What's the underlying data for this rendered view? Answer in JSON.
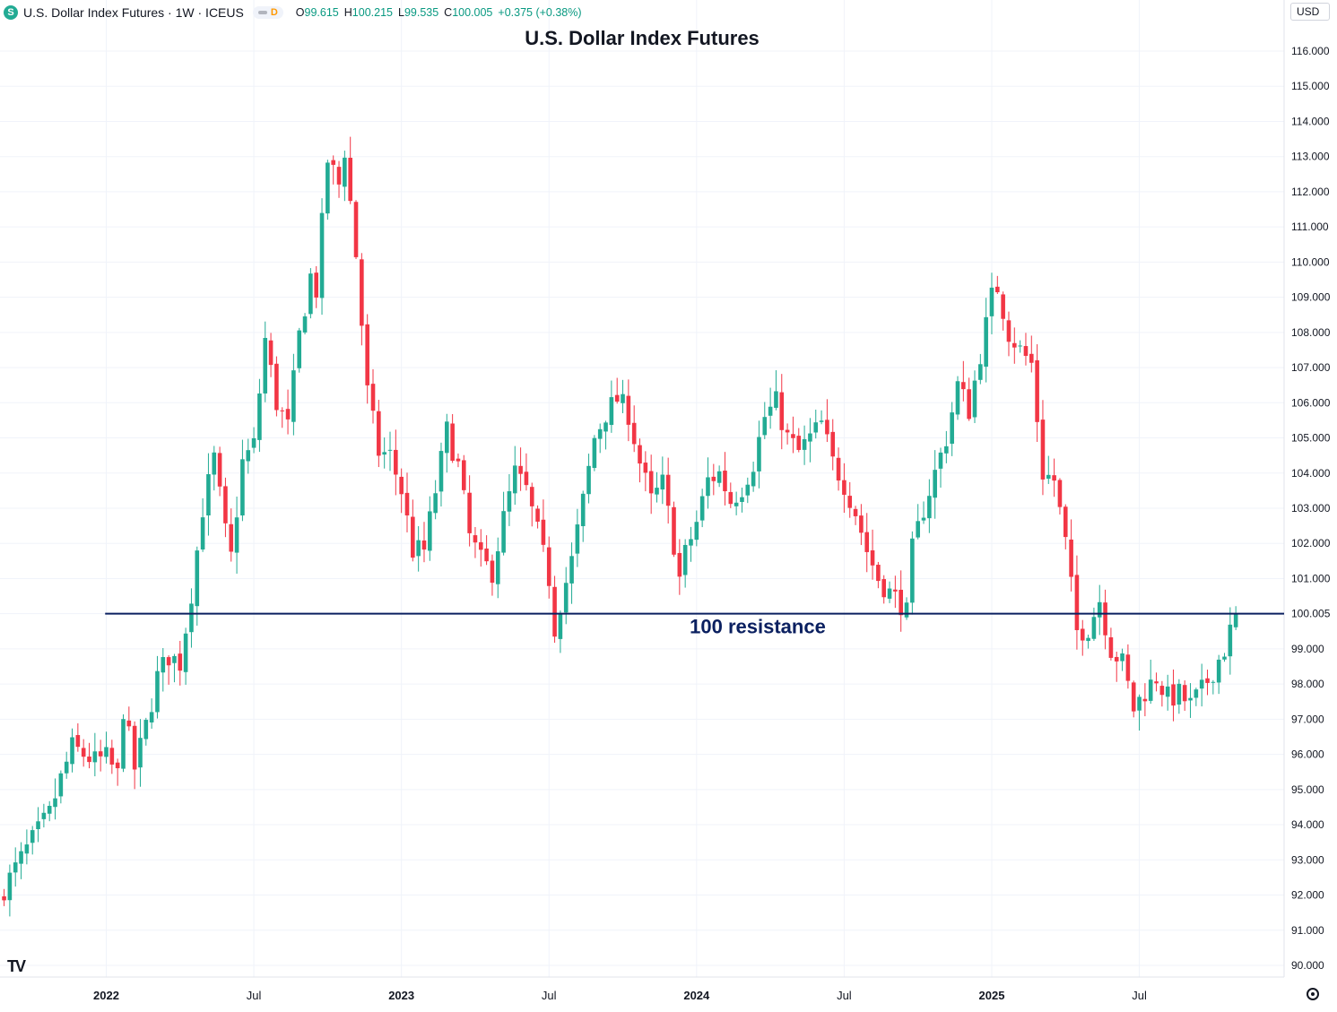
{
  "legend": {
    "symbol_icon": "S",
    "symbol_title": "U.S. Dollar Index Futures · 1W · ICEUS",
    "delay_badge": "D",
    "open_label": "O",
    "open_value": "99.615",
    "high_label": "H",
    "high_value": "100.215",
    "low_label": "L",
    "low_value": "99.535",
    "close_label": "C",
    "close_value": "100.005",
    "change_value": "+0.375 (+0.38%)"
  },
  "currency": "USD",
  "logo_text": "TV",
  "chart_data": {
    "type": "candlestick",
    "title": "U.S. Dollar Index Futures",
    "timeframe": "1W",
    "y_axis": {
      "range": [
        89.7,
        117.1
      ],
      "ticks": [
        "90.000",
        "91.000",
        "92.000",
        "93.000",
        "94.000",
        "95.000",
        "96.000",
        "97.000",
        "98.000",
        "99.000",
        "100.000",
        "101.000",
        "102.000",
        "103.000",
        "104.000",
        "105.000",
        "106.000",
        "107.000",
        "108.000",
        "109.000",
        "110.000",
        "111.000",
        "112.000",
        "113.000",
        "114.000",
        "115.000",
        "116.000"
      ],
      "current_price_label": "100.005"
    },
    "x_axis": {
      "labels": [
        {
          "text": "2022",
          "week": 0,
          "bold": true
        },
        {
          "text": "Jul",
          "week": 26,
          "bold": false
        },
        {
          "text": "2023",
          "week": 52,
          "bold": true
        },
        {
          "text": "Jul",
          "week": 78,
          "bold": false
        },
        {
          "text": "2024",
          "week": 104,
          "bold": true
        },
        {
          "text": "Jul",
          "week": 130,
          "bold": false
        },
        {
          "text": "2025",
          "week": 156,
          "bold": true
        },
        {
          "text": "Jul",
          "week": 182,
          "bold": false
        }
      ],
      "first_week": -18,
      "last_week": 199
    },
    "annotation": {
      "price": 100.0,
      "label": "100 resistance",
      "from_week": -0.2
    },
    "up_color": "#22ab94",
    "down_color": "#f23645",
    "line_color": "#0b2060",
    "anchors": [
      {
        "w": -18,
        "p": 92.2
      },
      {
        "w": -14,
        "p": 93.3
      },
      {
        "w": -10,
        "p": 94.3
      },
      {
        "w": -8,
        "p": 95.3
      },
      {
        "w": -6,
        "p": 96.2
      },
      {
        "w": -2,
        "p": 95.8
      },
      {
        "w": 0,
        "p": 95.9
      },
      {
        "w": 2,
        "p": 95.4
      },
      {
        "w": 3,
        "p": 97.3
      },
      {
        "w": 5,
        "p": 95.6
      },
      {
        "w": 7,
        "p": 96.8
      },
      {
        "w": 9,
        "p": 98.2
      },
      {
        "w": 11,
        "p": 98.8
      },
      {
        "w": 13,
        "p": 98.6
      },
      {
        "w": 15,
        "p": 100.6
      },
      {
        "w": 17,
        "p": 103.0
      },
      {
        "w": 19,
        "p": 104.4
      },
      {
        "w": 21,
        "p": 102.3
      },
      {
        "w": 22,
        "p": 101.6
      },
      {
        "w": 24,
        "p": 104.3
      },
      {
        "w": 26,
        "p": 104.8
      },
      {
        "w": 28,
        "p": 107.8
      },
      {
        "w": 30,
        "p": 106.0
      },
      {
        "w": 32,
        "p": 105.3
      },
      {
        "w": 34,
        "p": 107.9
      },
      {
        "w": 36,
        "p": 109.6
      },
      {
        "w": 37,
        "p": 109.2
      },
      {
        "w": 39,
        "p": 112.9
      },
      {
        "w": 41,
        "p": 112.2
      },
      {
        "w": 42,
        "p": 113.2
      },
      {
        "w": 44,
        "p": 110.2
      },
      {
        "w": 46,
        "p": 106.3
      },
      {
        "w": 48,
        "p": 104.6
      },
      {
        "w": 50,
        "p": 104.5
      },
      {
        "w": 52,
        "p": 103.5
      },
      {
        "w": 54,
        "p": 101.8
      },
      {
        "w": 56,
        "p": 101.8
      },
      {
        "w": 58,
        "p": 103.5
      },
      {
        "w": 60,
        "p": 105.2
      },
      {
        "w": 62,
        "p": 104.2
      },
      {
        "w": 64,
        "p": 102.2
      },
      {
        "w": 66,
        "p": 101.5
      },
      {
        "w": 68,
        "p": 101.2
      },
      {
        "w": 70,
        "p": 102.7
      },
      {
        "w": 72,
        "p": 104.0
      },
      {
        "w": 74,
        "p": 103.5
      },
      {
        "w": 76,
        "p": 102.3
      },
      {
        "w": 78,
        "p": 101.0
      },
      {
        "w": 79,
        "p": 99.6
      },
      {
        "w": 80,
        "p": 100.3
      },
      {
        "w": 82,
        "p": 101.5
      },
      {
        "w": 84,
        "p": 103.2
      },
      {
        "w": 86,
        "p": 105.0
      },
      {
        "w": 88,
        "p": 105.7
      },
      {
        "w": 90,
        "p": 106.1
      },
      {
        "w": 92,
        "p": 105.7
      },
      {
        "w": 94,
        "p": 104.3
      },
      {
        "w": 96,
        "p": 103.2
      },
      {
        "w": 98,
        "p": 103.7
      },
      {
        "w": 100,
        "p": 102.0
      },
      {
        "w": 101,
        "p": 101.0
      },
      {
        "w": 102,
        "p": 101.7
      },
      {
        "w": 104,
        "p": 102.6
      },
      {
        "w": 106,
        "p": 103.8
      },
      {
        "w": 108,
        "p": 104.0
      },
      {
        "w": 110,
        "p": 103.2
      },
      {
        "w": 112,
        "p": 103.6
      },
      {
        "w": 114,
        "p": 104.3
      },
      {
        "w": 116,
        "p": 105.6
      },
      {
        "w": 118,
        "p": 106.0
      },
      {
        "w": 120,
        "p": 105.0
      },
      {
        "w": 122,
        "p": 104.6
      },
      {
        "w": 124,
        "p": 105.0
      },
      {
        "w": 126,
        "p": 105.4
      },
      {
        "w": 128,
        "p": 104.3
      },
      {
        "w": 130,
        "p": 103.7
      },
      {
        "w": 132,
        "p": 102.9
      },
      {
        "w": 134,
        "p": 101.8
      },
      {
        "w": 136,
        "p": 101.0
      },
      {
        "w": 138,
        "p": 100.6
      },
      {
        "w": 140,
        "p": 100.3
      },
      {
        "w": 141,
        "p": 100.0
      },
      {
        "w": 142,
        "p": 101.8
      },
      {
        "w": 144,
        "p": 103.0
      },
      {
        "w": 146,
        "p": 104.0
      },
      {
        "w": 148,
        "p": 105.0
      },
      {
        "w": 150,
        "p": 106.5
      },
      {
        "w": 152,
        "p": 105.8
      },
      {
        "w": 154,
        "p": 107.4
      },
      {
        "w": 156,
        "p": 109.0
      },
      {
        "w": 157,
        "p": 109.3
      },
      {
        "w": 159,
        "p": 108.0
      },
      {
        "w": 161,
        "p": 107.5
      },
      {
        "w": 163,
        "p": 107.1
      },
      {
        "w": 165,
        "p": 104.0
      },
      {
        "w": 167,
        "p": 103.8
      },
      {
        "w": 169,
        "p": 102.0
      },
      {
        "w": 171,
        "p": 99.5
      },
      {
        "w": 173,
        "p": 99.6
      },
      {
        "w": 175,
        "p": 100.4
      },
      {
        "w": 177,
        "p": 99.0
      },
      {
        "w": 179,
        "p": 98.6
      },
      {
        "w": 181,
        "p": 97.3
      },
      {
        "w": 183,
        "p": 97.8
      },
      {
        "w": 185,
        "p": 98.2
      },
      {
        "w": 187,
        "p": 97.6
      },
      {
        "w": 189,
        "p": 97.7
      },
      {
        "w": 191,
        "p": 97.4
      },
      {
        "w": 193,
        "p": 97.8
      },
      {
        "w": 195,
        "p": 98.4
      },
      {
        "w": 197,
        "p": 99.0
      },
      {
        "w": 199,
        "p": 100.0
      }
    ]
  }
}
